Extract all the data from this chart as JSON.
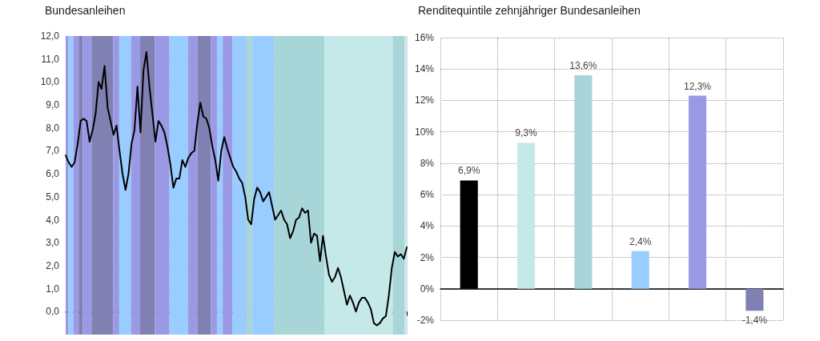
{
  "chart_data": [
    {
      "type": "line",
      "title": "Bundesanleihen",
      "categories": [
        null,
        null,
        null,
        null,
        null,
        null,
        null,
        null,
        null,
        null,
        null,
        null,
        null,
        null,
        null,
        null,
        null,
        null,
        null,
        null,
        null,
        null,
        null,
        null,
        null,
        null,
        null,
        null,
        null,
        null,
        null,
        null,
        null,
        null,
        null,
        null,
        null,
        null,
        null,
        null,
        null,
        null,
        null,
        null,
        null,
        null,
        null,
        null,
        null,
        null,
        null,
        null,
        null,
        null,
        null,
        null,
        null,
        null,
        null,
        null,
        null,
        null,
        null,
        null,
        null,
        null,
        null,
        null,
        null,
        null,
        null,
        null,
        null,
        null,
        null,
        null,
        null,
        null,
        null,
        null,
        null,
        null,
        null,
        null,
        null,
        null,
        null,
        null,
        null,
        null,
        null,
        null,
        null,
        null,
        null,
        null,
        null,
        null,
        null,
        null,
        null,
        null,
        null,
        null,
        null,
        null,
        null,
        null,
        null,
        null,
        null,
        null,
        null,
        null,
        null
      ],
      "values": [
        6.8,
        6.5,
        6.3,
        6.5,
        7.3,
        8.3,
        8.4,
        8.3,
        7.4,
        7.9,
        8.6,
        10.0,
        9.7,
        10.7,
        8.9,
        8.3,
        7.7,
        8.1,
        7.0,
        6.0,
        5.3,
        6.0,
        7.3,
        7.9,
        9.8,
        7.8,
        10.5,
        11.3,
        9.8,
        8.6,
        7.4,
        8.3,
        8.1,
        7.8,
        7.2,
        6.4,
        5.4,
        5.8,
        5.8,
        6.6,
        6.3,
        6.7,
        6.9,
        7.0,
        8.2,
        9.1,
        8.5,
        8.4,
        8.0,
        7.2,
        6.6,
        5.7,
        7.0,
        7.6,
        7.1,
        6.7,
        6.3,
        6.1,
        5.8,
        5.6,
        5.0,
        4.0,
        3.8,
        4.9,
        5.4,
        5.2,
        4.8,
        5.0,
        5.2,
        4.6,
        4.0,
        4.2,
        4.4,
        4.0,
        3.8,
        3.2,
        3.5,
        4.0,
        4.1,
        4.5,
        4.3,
        4.4,
        3.0,
        3.4,
        3.3,
        2.2,
        3.3,
        2.4,
        1.6,
        1.3,
        1.5,
        1.9,
        1.5,
        0.9,
        0.3,
        0.7,
        0.4,
        0.0,
        0.4,
        0.6,
        0.6,
        0.4,
        0.1,
        -0.5,
        -0.6,
        -0.5,
        -0.3,
        -0.2,
        0.7,
        1.9,
        2.6,
        2.4,
        2.5,
        2.3,
        2.8
      ],
      "color": "#000000",
      "ylim": [
        -1,
        12
      ],
      "yticks": [
        {
          "value": 0,
          "label": "0,0"
        },
        {
          "value": 1,
          "label": "1,0"
        },
        {
          "value": 2,
          "label": "2,0"
        },
        {
          "value": 3,
          "label": "3,0"
        },
        {
          "value": 4,
          "label": "4,0"
        },
        {
          "value": 5,
          "label": "5,0"
        },
        {
          "value": 6,
          "label": "6,0"
        },
        {
          "value": 7,
          "label": "7,0"
        },
        {
          "value": 8,
          "label": "8,0"
        },
        {
          "value": 9,
          "label": "9,0"
        },
        {
          "value": 10,
          "label": "10,0"
        },
        {
          "value": 11,
          "label": "11,0"
        },
        {
          "value": 12,
          "label": "12,0"
        }
      ],
      "grid": true
    },
    {
      "type": "bar",
      "title": "Renditequintile zehnjähriger Bundesanleihen",
      "categories": [
        null,
        null,
        null,
        null,
        null,
        null
      ],
      "values": [
        6.9,
        9.3,
        13.6,
        2.4,
        12.3,
        -1.4
      ],
      "colors": [
        "#000000",
        "#c5e8e8",
        "#a8d5d8",
        "#99ccff",
        "#9999e6",
        "#8080b3"
      ],
      "value_labels": [
        "6,9%",
        "9,3%",
        "13,6%",
        "2,4%",
        "12,3%",
        "-1,4%"
      ],
      "ylim": [
        -2,
        16
      ],
      "yticks": [
        {
          "value": -2,
          "label": "-2%"
        },
        {
          "value": 0,
          "label": "0%"
        },
        {
          "value": 2,
          "label": "2%"
        },
        {
          "value": 4,
          "label": "4%"
        },
        {
          "value": 6,
          "label": "6%"
        },
        {
          "value": 8,
          "label": "8%"
        },
        {
          "value": 10,
          "label": "10%"
        },
        {
          "value": 12,
          "label": "12%"
        },
        {
          "value": 14,
          "label": "14%"
        },
        {
          "value": 16,
          "label": "16%"
        }
      ],
      "grid": true
    }
  ]
}
